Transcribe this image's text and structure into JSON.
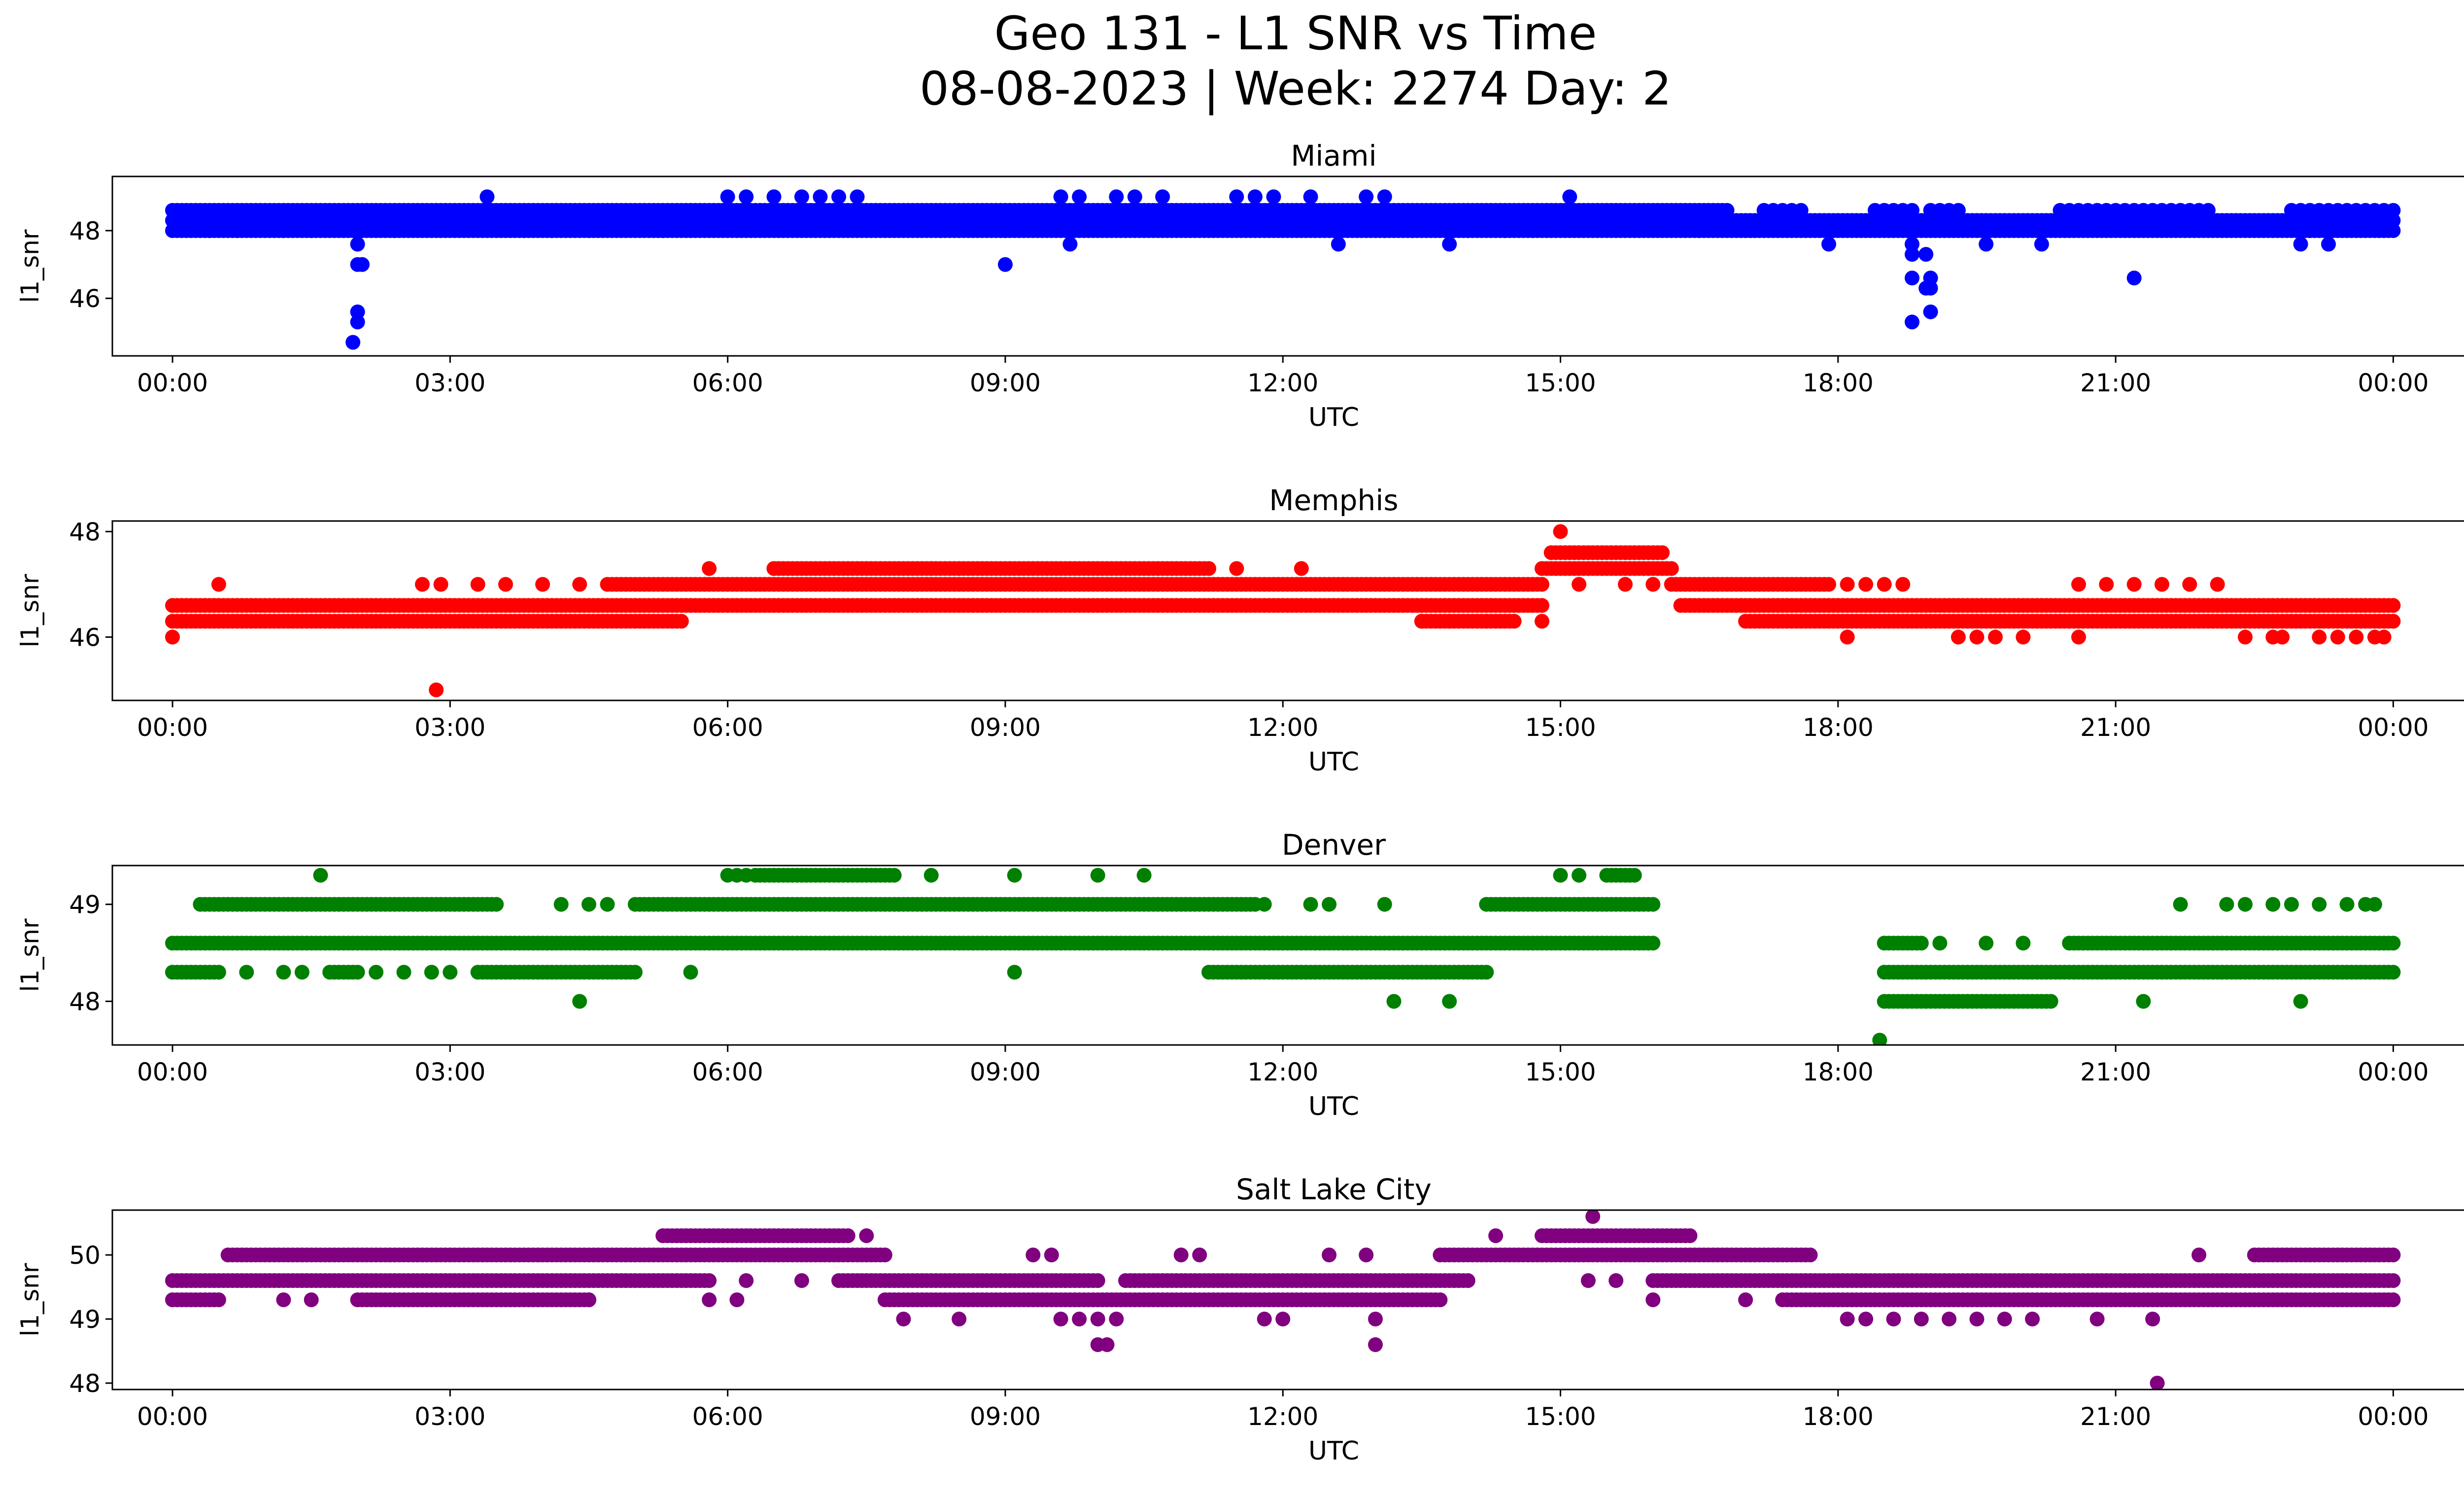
{
  "figure": {
    "title_line1": "Geo 131 - L1 SNR vs Time",
    "title_line2": "08-08-2023 | Week: 2274 Day: 2"
  },
  "chart_data": [
    {
      "type": "scatter",
      "title": "Miami",
      "xlabel": "UTC",
      "ylabel": "l1_snr",
      "color": "#0000ff",
      "x_ticks": [
        "00:00",
        "03:00",
        "06:00",
        "09:00",
        "12:00",
        "15:00",
        "18:00",
        "21:00",
        "00:00"
      ],
      "x_range_hours": [
        -0.65,
        25.75
      ],
      "ylim": [
        44.3,
        49.6
      ],
      "y_ticks": [
        46,
        48
      ],
      "bands": [
        {
          "y": 48.0,
          "segments": [
            [
              0.0,
              16.5
            ],
            [
              16.5,
              24.0
            ]
          ],
          "step_min": 3
        },
        {
          "y": 48.3,
          "segments": [
            [
              0.0,
              24.0
            ]
          ],
          "step_min": 3
        },
        {
          "y": 48.6,
          "segments": [
            [
              0.0,
              16.8
            ]
          ],
          "step_min": 3
        },
        {
          "y": 48.6,
          "segments": [
            [
              17.2,
              17.6
            ],
            [
              18.4,
              18.8
            ],
            [
              19.0,
              19.3
            ],
            [
              20.4,
              21.0
            ],
            [
              21.1,
              22.0
            ],
            [
              22.9,
              24.0
            ]
          ],
          "step_min": 6
        }
      ],
      "sparse_rows": [
        {
          "y": 49.0,
          "hours": [
            3.4,
            6.0,
            6.2,
            6.5,
            6.8,
            7.0,
            7.2,
            7.4,
            9.6,
            9.8,
            10.2,
            10.4,
            10.7,
            11.5,
            11.7,
            11.9,
            12.3,
            12.9,
            13.1,
            15.1
          ]
        },
        {
          "y": 48.0,
          "hours": [
            0.4,
            0.7,
            1.2,
            1.5,
            2.4,
            3.8,
            4.1,
            4.5,
            5.3,
            8.3,
            9.0,
            9.7,
            13.1,
            13.4,
            14.0,
            14.4,
            14.7,
            23.1
          ]
        },
        {
          "y": 47.6,
          "hours": [
            2.0,
            9.7,
            12.6,
            13.8,
            17.9,
            18.8,
            19.6,
            20.2,
            23.0,
            23.3
          ]
        }
      ],
      "points": [
        [
          2.0,
          47.0
        ],
        [
          2.05,
          47.0
        ],
        [
          2.0,
          45.6
        ],
        [
          2.0,
          45.3
        ],
        [
          1.95,
          44.7
        ],
        [
          18.8,
          47.3
        ],
        [
          18.95,
          47.3
        ],
        [
          18.8,
          46.6
        ],
        [
          19.0,
          46.6
        ],
        [
          19.0,
          46.3
        ],
        [
          18.95,
          46.3
        ],
        [
          19.0,
          45.6
        ],
        [
          18.8,
          45.3
        ],
        [
          21.2,
          46.6
        ],
        [
          9.0,
          47.0
        ]
      ]
    },
    {
      "type": "scatter",
      "title": "Memphis",
      "xlabel": "UTC",
      "ylabel": "l1_snr",
      "color": "#ff0000",
      "x_ticks": [
        "00:00",
        "03:00",
        "06:00",
        "09:00",
        "12:00",
        "15:00",
        "18:00",
        "21:00",
        "00:00"
      ],
      "x_range_hours": [
        -0.65,
        25.75
      ],
      "ylim": [
        44.8,
        48.2
      ],
      "y_ticks": [
        46,
        48
      ],
      "bands": [
        {
          "y": 46.3,
          "segments": [
            [
              0.0,
              5.5
            ],
            [
              13.5,
              14.5
            ],
            [
              17.0,
              24.0
            ]
          ],
          "step_min": 3
        },
        {
          "y": 46.6,
          "segments": [
            [
              0.0,
              14.8
            ],
            [
              16.3,
              24.0
            ]
          ],
          "step_min": 3
        },
        {
          "y": 47.0,
          "segments": [
            [
              4.7,
              14.8
            ],
            [
              16.2,
              17.9
            ]
          ],
          "step_min": 3
        },
        {
          "y": 47.3,
          "segments": [
            [
              6.5,
              11.2
            ],
            [
              14.8,
              16.2
            ]
          ],
          "step_min": 3
        },
        {
          "y": 47.6,
          "segments": [
            [
              14.9,
              16.1
            ]
          ],
          "step_min": 3
        }
      ],
      "sparse_rows": [
        {
          "y": 47.0,
          "hours": [
            0.5,
            2.7,
            2.9,
            3.3,
            3.6,
            4.0,
            4.4,
            15.2,
            15.7,
            16.0,
            18.1,
            18.3,
            18.5,
            18.7,
            20.6,
            20.9,
            21.2,
            21.5,
            21.8,
            22.1
          ]
        },
        {
          "y": 47.3,
          "hours": [
            5.8,
            6.5,
            8.2,
            8.5,
            11.5,
            12.2
          ]
        },
        {
          "y": 46.0,
          "hours": [
            18.1,
            19.3,
            19.5,
            19.7,
            20.0,
            20.6,
            22.4,
            22.7,
            22.8,
            23.2,
            23.4,
            23.6,
            23.8,
            23.9
          ]
        },
        {
          "y": 46.3,
          "hours": [
            13.5,
            13.8,
            14.2,
            14.8
          ]
        }
      ],
      "points": [
        [
          0.0,
          46.0
        ],
        [
          2.85,
          45.0
        ],
        [
          15.0,
          48.0
        ]
      ]
    },
    {
      "type": "scatter",
      "title": "Denver",
      "xlabel": "UTC",
      "ylabel": "l1_snr",
      "color": "#008000",
      "x_ticks": [
        "00:00",
        "03:00",
        "06:00",
        "09:00",
        "12:00",
        "15:00",
        "18:00",
        "21:00",
        "00:00"
      ],
      "x_range_hours": [
        -0.65,
        25.75
      ],
      "ylim": [
        47.55,
        49.4
      ],
      "y_ticks": [
        48,
        49
      ],
      "bands": [
        {
          "y": 48.6,
          "segments": [
            [
              0.0,
              16.0
            ],
            [
              18.5,
              18.9
            ],
            [
              20.5,
              24.0
            ]
          ],
          "step_min": 3
        },
        {
          "y": 48.3,
          "segments": [
            [
              0.0,
              0.5
            ],
            [
              1.7,
              2.0
            ],
            [
              3.3,
              5.0
            ],
            [
              11.2,
              14.2
            ],
            [
              18.5,
              24.0
            ]
          ],
          "step_min": 3
        },
        {
          "y": 49.0,
          "segments": [
            [
              0.3,
              3.5
            ],
            [
              5.0,
              11.7
            ],
            [
              14.2,
              16.0
            ]
          ],
          "step_min": 3
        },
        {
          "y": 49.3,
          "segments": [
            [
              6.3,
              7.8
            ],
            [
              15.5,
              15.8
            ]
          ],
          "step_min": 3
        },
        {
          "y": 48.0,
          "segments": [
            [
              18.5,
              20.3
            ]
          ],
          "step_min": 3
        }
      ],
      "sparse_rows": [
        {
          "y": 49.0,
          "hours": [
            4.2,
            4.5,
            4.7,
            11.8,
            12.3,
            12.5,
            13.1,
            21.7,
            22.2,
            22.4,
            22.7,
            22.9,
            23.2,
            23.5,
            23.7,
            23.8
          ]
        },
        {
          "y": 49.3,
          "hours": [
            1.6,
            6.0,
            6.1,
            6.2,
            8.2,
            9.1,
            10.0,
            10.5,
            15.0,
            15.2
          ]
        },
        {
          "y": 48.3,
          "hours": [
            0.8,
            1.2,
            1.4,
            2.2,
            2.5,
            2.8,
            3.0,
            5.6,
            9.1
          ]
        },
        {
          "y": 48.6,
          "hours": [
            19.1,
            19.6,
            20.0
          ]
        },
        {
          "y": 48.0,
          "hours": [
            4.4,
            13.2,
            13.8,
            21.3,
            23.0
          ]
        }
      ],
      "points": [
        [
          18.45,
          47.6
        ]
      ]
    },
    {
      "type": "scatter",
      "title": "Salt Lake City",
      "xlabel": "UTC",
      "ylabel": "l1_snr",
      "color": "#800080",
      "x_ticks": [
        "00:00",
        "03:00",
        "06:00",
        "09:00",
        "12:00",
        "15:00",
        "18:00",
        "21:00",
        "00:00"
      ],
      "x_range_hours": [
        -0.65,
        25.75
      ],
      "ylim": [
        47.9,
        50.7
      ],
      "y_ticks": [
        48,
        49,
        50
      ],
      "bands": [
        {
          "y": 49.6,
          "segments": [
            [
              0.0,
              5.8
            ],
            [
              7.2,
              10.0
            ],
            [
              10.3,
              14.0
            ],
            [
              16.0,
              24.0
            ]
          ],
          "step_min": 3
        },
        {
          "y": 49.3,
          "segments": [
            [
              0.0,
              0.5
            ],
            [
              2.0,
              4.5
            ],
            [
              7.7,
              13.7
            ],
            [
              17.4,
              24.0
            ]
          ],
          "step_min": 3
        },
        {
          "y": 50.0,
          "segments": [
            [
              0.6,
              7.7
            ],
            [
              13.7,
              17.7
            ],
            [
              22.5,
              24.0
            ]
          ],
          "step_min": 3
        },
        {
          "y": 50.3,
          "segments": [
            [
              5.3,
              7.3
            ],
            [
              14.8,
              16.4
            ]
          ],
          "step_min": 3
        }
      ],
      "sparse_rows": [
        {
          "y": 49.0,
          "hours": [
            7.9,
            8.5,
            9.6,
            9.8,
            10.0,
            10.2,
            11.8,
            12.0,
            13.0,
            18.1,
            18.3,
            18.6,
            18.9,
            19.2,
            19.5,
            19.8,
            20.1,
            20.8,
            21.4
          ]
        },
        {
          "y": 49.3,
          "hours": [
            1.2,
            1.5,
            4.5,
            5.8,
            6.1,
            16.0,
            17.0
          ]
        },
        {
          "y": 49.6,
          "hours": [
            6.2,
            6.8,
            15.3,
            15.6
          ]
        },
        {
          "y": 50.0,
          "hours": [
            9.3,
            9.5,
            10.9,
            11.1,
            12.5,
            12.9,
            21.9
          ]
        },
        {
          "y": 50.3,
          "hours": [
            14.3,
            7.5
          ]
        }
      ],
      "points": [
        [
          15.35,
          50.6
        ],
        [
          10.0,
          48.6
        ],
        [
          10.1,
          48.6
        ],
        [
          13.0,
          48.6
        ],
        [
          21.45,
          48.0
        ]
      ]
    }
  ]
}
